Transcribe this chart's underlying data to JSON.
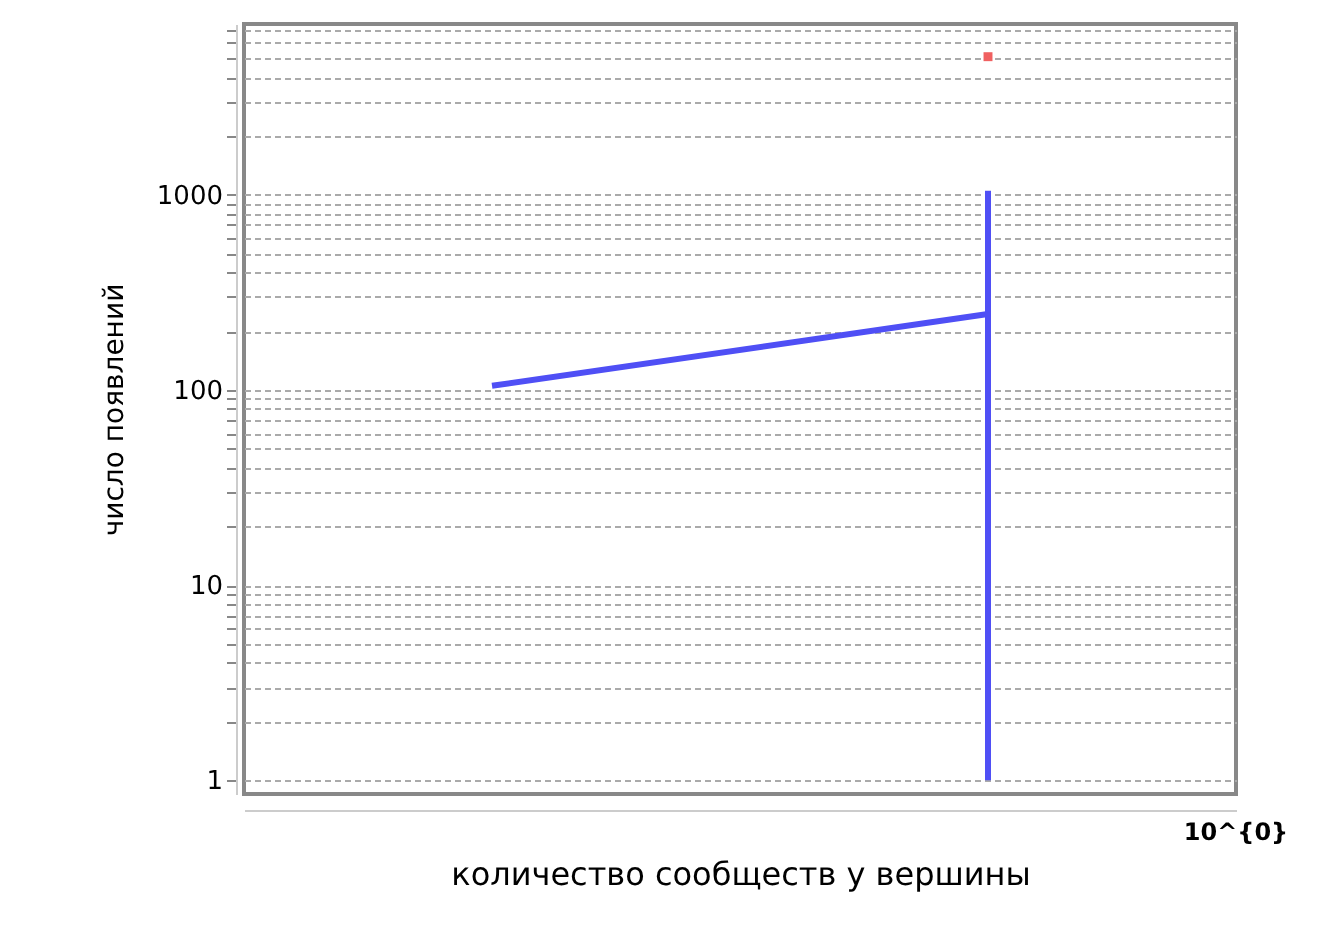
{
  "chart_data": {
    "type": "line",
    "xlabel": "количество сообществ у вершины",
    "ylabel": "число появлений",
    "log": true,
    "grid": "y",
    "categories": [
      null,
      null
    ],
    "ylim": [
      0.85,
      7500
    ],
    "yticks": [
      1,
      {
        "value": 2,
        "label": null
      },
      {
        "value": 3,
        "label": null
      },
      {
        "value": 4,
        "label": null
      },
      {
        "value": 5,
        "label": null
      },
      {
        "value": 6,
        "label": null
      },
      {
        "value": 7,
        "label": null
      },
      {
        "value": 8,
        "label": null
      },
      {
        "value": 9,
        "label": null
      },
      10,
      {
        "value": 20,
        "label": null
      },
      {
        "value": 30,
        "label": null
      },
      {
        "value": 40,
        "label": null
      },
      {
        "value": 50,
        "label": null
      },
      {
        "value": 60,
        "label": null
      },
      {
        "value": 70,
        "label": null
      },
      {
        "value": 80,
        "label": null
      },
      {
        "value": 90,
        "label": null
      },
      100,
      {
        "value": 200,
        "label": null
      },
      {
        "value": 300,
        "label": null
      },
      {
        "value": 400,
        "label": null
      },
      {
        "value": 500,
        "label": null
      },
      {
        "value": 600,
        "label": null
      },
      {
        "value": 700,
        "label": null
      },
      {
        "value": 800,
        "label": null
      },
      {
        "value": 900,
        "label": null
      },
      1000,
      {
        "value": 2000,
        "label": null
      },
      {
        "value": 3000,
        "label": null
      },
      {
        "value": 4000,
        "label": null
      },
      {
        "value": 5000,
        "label": null
      },
      {
        "value": 6000,
        "label": null
      },
      {
        "value": 7000,
        "label": null
      }
    ],
    "annotations": [
      "10^{0}"
    ],
    "series": [
      {
        "color": "#4f4ff5",
        "values": [
          105,
          245
        ],
        "errors": [
          null,
          [
            1,
            1050
          ]
        ]
      },
      {
        "type": "scatter",
        "color": "#f06060",
        "values": [
          null,
          5100
        ]
      }
    ]
  }
}
